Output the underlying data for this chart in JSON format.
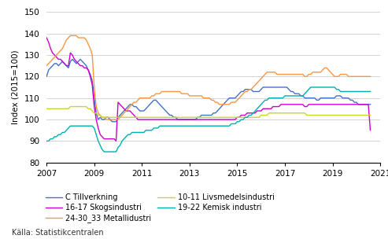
{
  "title": "",
  "ylabel": "Index (2015=100)",
  "xlabel": "",
  "ylim": [
    80,
    150
  ],
  "yticks": [
    80,
    90,
    100,
    110,
    120,
    130,
    140,
    150
  ],
  "xlim": [
    2007.0,
    2021.0
  ],
  "xticks": [
    2007,
    2009,
    2011,
    2013,
    2015,
    2017,
    2019,
    2021
  ],
  "source_text": "Källa: Statistikcentralen",
  "legend_entries": [
    "C Tillverkning",
    "16-17 Skogsindustri",
    "24-30_33 Metallidustri",
    "10-11 Livsmedelsindustri",
    "19-22 Kemisk industri"
  ],
  "colors": {
    "C Tillverkning": "#4472c4",
    "16-17 Skogsindustri": "#cc00cc",
    "24-30_33 Metallidustri": "#f79646",
    "10-11 Livsmedelsindustri": "#c8d62b",
    "19-22 Kemisk industri": "#00b0b0"
  },
  "background_color": "#ffffff",
  "grid_color": "#cccccc",
  "series": {
    "C Tillverkning": [
      120,
      123,
      124,
      125,
      126,
      126,
      125,
      126,
      127,
      126,
      125,
      124,
      127,
      128,
      127,
      126,
      127,
      128,
      127,
      126,
      125,
      123,
      121,
      118,
      110,
      103,
      100,
      101,
      100,
      100,
      101,
      101,
      100,
      99,
      99,
      99,
      101,
      102,
      103,
      104,
      105,
      106,
      107,
      107,
      106,
      106,
      105,
      104,
      104,
      104,
      105,
      106,
      107,
      108,
      109,
      109,
      108,
      107,
      106,
      105,
      104,
      103,
      102,
      102,
      101,
      101,
      100,
      100,
      100,
      100,
      100,
      100,
      100,
      100,
      100,
      100,
      101,
      101,
      102,
      102,
      102,
      102,
      102,
      102,
      103,
      103,
      104,
      105,
      106,
      107,
      108,
      109,
      110,
      110,
      110,
      110,
      111,
      112,
      113,
      113,
      114,
      114,
      114,
      114,
      113,
      113,
      113,
      113,
      114,
      115,
      115,
      115,
      115,
      115,
      115,
      115,
      115,
      115,
      115,
      115,
      115,
      115,
      114,
      113,
      113,
      112,
      112,
      112,
      111,
      111,
      110,
      110,
      110,
      110,
      110,
      110,
      109,
      109,
      110,
      110,
      110,
      110,
      110,
      110,
      110,
      110,
      111,
      111,
      111,
      110,
      110,
      110,
      110,
      109,
      109,
      108,
      108,
      107,
      107,
      107,
      107,
      107,
      107,
      107
    ],
    "16-17 Skogsindustri": [
      138,
      136,
      133,
      131,
      130,
      129,
      128,
      128,
      127,
      126,
      125,
      125,
      131,
      130,
      128,
      127,
      126,
      125,
      125,
      124,
      124,
      123,
      120,
      116,
      106,
      100,
      96,
      93,
      92,
      91,
      91,
      91,
      91,
      91,
      91,
      90,
      108,
      107,
      106,
      105,
      104,
      104,
      104,
      103,
      102,
      101,
      100,
      100,
      100,
      100,
      100,
      100,
      100,
      100,
      100,
      100,
      100,
      100,
      100,
      100,
      100,
      100,
      100,
      100,
      100,
      100,
      100,
      100,
      100,
      100,
      100,
      100,
      100,
      100,
      100,
      100,
      100,
      100,
      100,
      100,
      100,
      100,
      100,
      100,
      100,
      100,
      100,
      100,
      100,
      100,
      100,
      100,
      100,
      100,
      100,
      100,
      101,
      101,
      102,
      102,
      102,
      103,
      103,
      103,
      103,
      103,
      104,
      104,
      104,
      105,
      105,
      105,
      105,
      105,
      106,
      106,
      106,
      106,
      107,
      107,
      107,
      107,
      107,
      107,
      107,
      107,
      107,
      107,
      107,
      107,
      106,
      106,
      107,
      107,
      107,
      107,
      107,
      107,
      107,
      107,
      107,
      107,
      107,
      107,
      107,
      107,
      107,
      107,
      107,
      107,
      107,
      107,
      107,
      107,
      107,
      107,
      107,
      107,
      107,
      107,
      107,
      107,
      107,
      95
    ],
    "24-30_33 Metallidustri": [
      125,
      126,
      127,
      128,
      129,
      130,
      131,
      132,
      133,
      135,
      137,
      138,
      139,
      139,
      139,
      139,
      138,
      138,
      138,
      138,
      137,
      135,
      133,
      130,
      115,
      106,
      103,
      102,
      101,
      101,
      100,
      100,
      100,
      100,
      100,
      100,
      100,
      101,
      102,
      103,
      104,
      105,
      106,
      107,
      108,
      108,
      109,
      110,
      110,
      110,
      110,
      110,
      110,
      111,
      111,
      112,
      112,
      112,
      113,
      113,
      113,
      113,
      113,
      113,
      113,
      113,
      113,
      113,
      112,
      112,
      112,
      112,
      111,
      111,
      111,
      111,
      111,
      111,
      111,
      110,
      110,
      110,
      110,
      109,
      109,
      108,
      108,
      107,
      107,
      107,
      107,
      107,
      107,
      108,
      108,
      108,
      109,
      110,
      111,
      112,
      113,
      113,
      114,
      114,
      115,
      116,
      117,
      118,
      119,
      120,
      121,
      122,
      122,
      122,
      122,
      122,
      121,
      121,
      121,
      121,
      121,
      121,
      121,
      121,
      121,
      121,
      121,
      121,
      121,
      121,
      120,
      120,
      121,
      121,
      122,
      122,
      122,
      122,
      122,
      123,
      124,
      124,
      123,
      122,
      121,
      120,
      120,
      120,
      121,
      121,
      121,
      121,
      120,
      120,
      120,
      120,
      120,
      120,
      120,
      120,
      120,
      120,
      120,
      120
    ],
    "10-11 Livsmedelsindustri": [
      105,
      105,
      105,
      105,
      105,
      105,
      105,
      105,
      105,
      105,
      105,
      105,
      106,
      106,
      106,
      106,
      106,
      106,
      106,
      106,
      106,
      105,
      105,
      104,
      103,
      103,
      102,
      102,
      101,
      101,
      101,
      101,
      101,
      101,
      101,
      101,
      101,
      101,
      101,
      101,
      101,
      101,
      101,
      101,
      101,
      101,
      101,
      101,
      101,
      101,
      101,
      101,
      101,
      101,
      101,
      101,
      101,
      101,
      101,
      101,
      101,
      101,
      101,
      101,
      101,
      101,
      101,
      101,
      101,
      101,
      101,
      101,
      101,
      101,
      101,
      101,
      101,
      101,
      101,
      101,
      101,
      101,
      101,
      101,
      101,
      101,
      101,
      101,
      101,
      101,
      101,
      101,
      101,
      101,
      101,
      101,
      101,
      101,
      101,
      101,
      101,
      101,
      101,
      101,
      101,
      101,
      101,
      101,
      102,
      102,
      102,
      102,
      103,
      103,
      103,
      103,
      103,
      103,
      103,
      103,
      103,
      103,
      103,
      103,
      103,
      103,
      103,
      103,
      103,
      103,
      103,
      102,
      102,
      102,
      102,
      102,
      102,
      102,
      102,
      102,
      102,
      102,
      102,
      102,
      102,
      102,
      102,
      102,
      102,
      102,
      102,
      102,
      102,
      102,
      102,
      102,
      102,
      102,
      102,
      102,
      102,
      102,
      102,
      102
    ],
    "19-22 Kemisk industri": [
      90,
      90,
      91,
      91,
      92,
      92,
      93,
      93,
      94,
      94,
      95,
      96,
      97,
      97,
      97,
      97,
      97,
      97,
      97,
      97,
      97,
      97,
      97,
      97,
      96,
      93,
      90,
      88,
      86,
      85,
      85,
      85,
      85,
      85,
      85,
      85,
      87,
      88,
      90,
      91,
      92,
      93,
      93,
      94,
      94,
      94,
      94,
      94,
      94,
      94,
      95,
      95,
      95,
      95,
      96,
      96,
      96,
      97,
      97,
      97,
      97,
      97,
      97,
      97,
      97,
      97,
      97,
      97,
      97,
      97,
      97,
      97,
      97,
      97,
      97,
      97,
      97,
      97,
      97,
      97,
      97,
      97,
      97,
      97,
      97,
      97,
      97,
      97,
      97,
      97,
      97,
      97,
      97,
      98,
      98,
      98,
      99,
      99,
      100,
      100,
      101,
      101,
      102,
      102,
      103,
      104,
      105,
      106,
      107,
      108,
      109,
      109,
      110,
      110,
      110,
      110,
      110,
      110,
      110,
      110,
      111,
      111,
      111,
      111,
      111,
      111,
      111,
      111,
      111,
      111,
      112,
      113,
      114,
      115,
      115,
      115,
      115,
      115,
      115,
      115,
      115,
      115,
      115,
      115,
      115,
      115,
      114,
      114,
      113,
      113,
      113,
      113,
      113,
      113,
      113,
      113,
      113,
      113,
      113,
      113,
      113,
      113,
      113,
      113
    ]
  }
}
